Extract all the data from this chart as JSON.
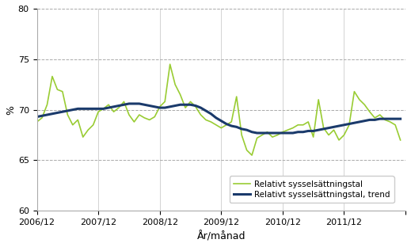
{
  "title": "",
  "ylabel": "%",
  "xlabel": "År/månad",
  "ylim": [
    60,
    80
  ],
  "yticks": [
    60,
    65,
    70,
    75,
    80
  ],
  "xlim": [
    0,
    72
  ],
  "xtick_positions": [
    0,
    12,
    24,
    36,
    48,
    60,
    72
  ],
  "xtick_labels": [
    "2006/12",
    "2007/12",
    "2008/12",
    "2009/12",
    "2010/12",
    "2011/12",
    ""
  ],
  "background_color": "#ffffff",
  "grid_color": "#aaaaaa",
  "line1_color": "#99cc33",
  "line2_color": "#1a3a6b",
  "legend_labels": [
    "Relativt sysselsättningstal",
    "Relativt sysselsättningstal, trend"
  ],
  "raw_values": [
    68.8,
    69.2,
    70.5,
    73.3,
    72.0,
    71.8,
    69.5,
    68.5,
    69.0,
    67.3,
    68.0,
    68.5,
    69.8,
    70.1,
    70.5,
    69.8,
    70.2,
    70.8,
    69.5,
    68.8,
    69.5,
    69.2,
    69.0,
    69.3,
    70.3,
    70.8,
    74.5,
    72.5,
    71.5,
    70.2,
    70.8,
    70.3,
    69.5,
    69.0,
    68.8,
    68.5,
    68.2,
    68.5,
    68.8,
    71.3,
    67.5,
    66.0,
    65.5,
    67.2,
    67.5,
    67.8,
    67.3,
    67.5,
    67.8,
    68.0,
    68.2,
    68.5,
    68.5,
    68.8,
    67.3,
    71.0,
    68.2,
    67.5,
    68.0,
    67.0,
    67.5,
    68.5,
    71.8,
    71.0,
    70.5,
    69.8,
    69.2,
    69.5,
    69.0,
    68.8,
    68.5,
    67.0
  ],
  "trend_values": [
    69.3,
    69.4,
    69.5,
    69.6,
    69.7,
    69.8,
    69.9,
    70.0,
    70.1,
    70.1,
    70.1,
    70.1,
    70.1,
    70.1,
    70.2,
    70.3,
    70.4,
    70.5,
    70.6,
    70.6,
    70.6,
    70.5,
    70.4,
    70.3,
    70.2,
    70.2,
    70.3,
    70.4,
    70.5,
    70.5,
    70.5,
    70.4,
    70.2,
    69.9,
    69.6,
    69.2,
    68.9,
    68.6,
    68.4,
    68.3,
    68.1,
    68.0,
    67.8,
    67.7,
    67.7,
    67.7,
    67.7,
    67.7,
    67.7,
    67.7,
    67.7,
    67.8,
    67.8,
    67.9,
    67.9,
    68.0,
    68.1,
    68.2,
    68.3,
    68.4,
    68.5,
    68.6,
    68.7,
    68.8,
    68.9,
    69.0,
    69.0,
    69.1,
    69.1,
    69.1,
    69.1,
    69.1
  ]
}
